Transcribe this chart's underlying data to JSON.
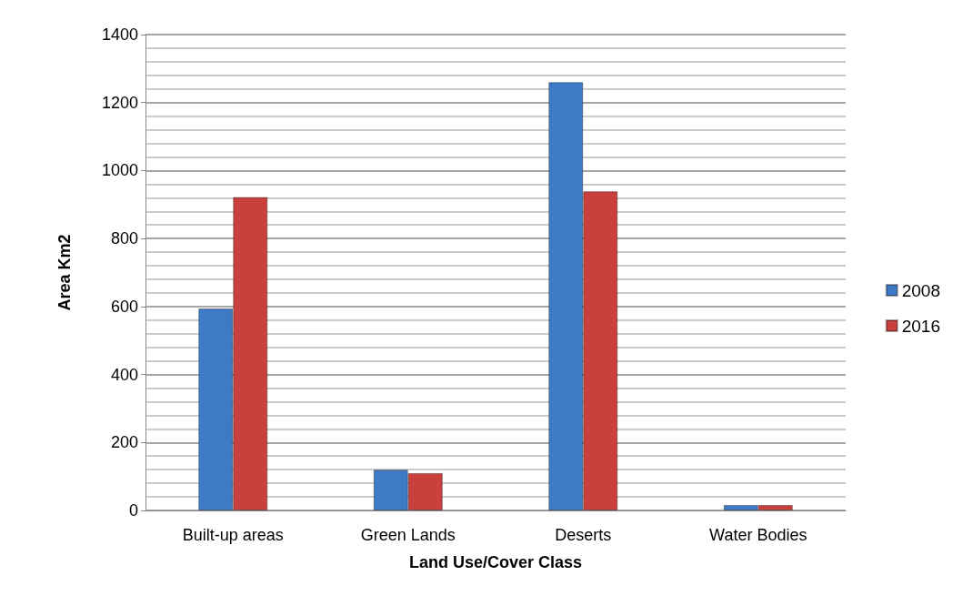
{
  "chart_data": {
    "type": "bar",
    "xlabel": "Land Use/Cover Class",
    "ylabel": "Area Km2",
    "categories": [
      "Built-up areas",
      "Green Lands",
      "Deserts",
      "Water Bodies"
    ],
    "series": [
      {
        "name": "2008",
        "color": "#3f7ac6",
        "values": [
          594,
          120,
          1260,
          16
        ]
      },
      {
        "name": "2016",
        "color": "#c9403c",
        "values": [
          922,
          110,
          939,
          16
        ]
      }
    ],
    "ylim": [
      0,
      1400
    ],
    "yticks": [
      0,
      200,
      400,
      600,
      800,
      1000,
      1200,
      1400
    ],
    "grid": "y",
    "legend": "right"
  }
}
